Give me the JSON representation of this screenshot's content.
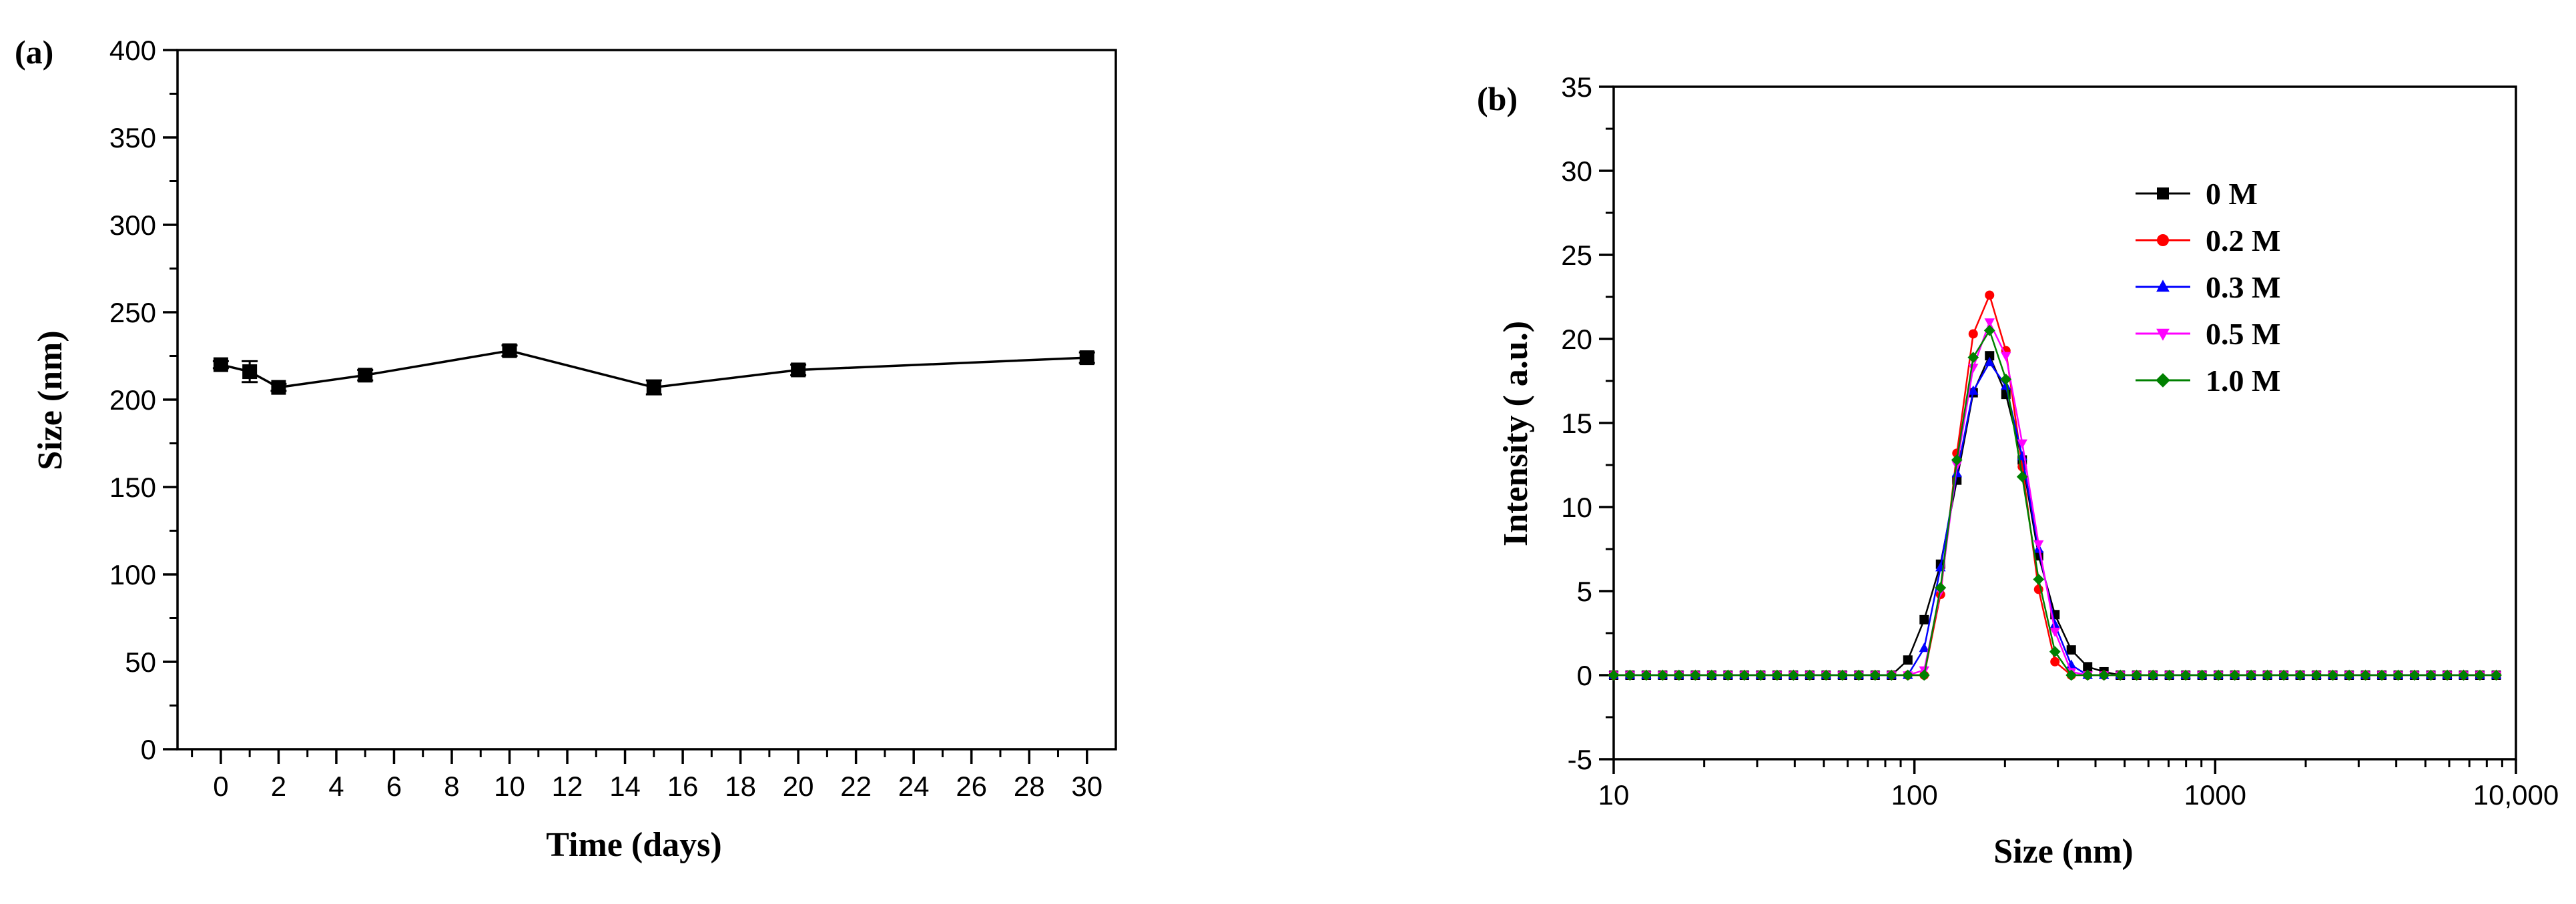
{
  "chart_data": [
    {
      "panel_label": "(a)",
      "type": "line",
      "xlabel": "Time (days)",
      "ylabel": "Size (nm)",
      "xlim": [
        -1.5,
        31
      ],
      "ylim": [
        0,
        400
      ],
      "x_ticks": [
        0,
        2,
        4,
        6,
        8,
        10,
        12,
        14,
        16,
        18,
        20,
        22,
        24,
        26,
        28,
        30
      ],
      "x_tick_labels": [
        "0",
        "2",
        "4",
        "6",
        "8",
        "10",
        "12",
        "14",
        "16",
        "18",
        "20",
        "22",
        "24",
        "26",
        "28",
        "30"
      ],
      "y_ticks": [
        0,
        50,
        100,
        150,
        200,
        250,
        300,
        350,
        400
      ],
      "y_tick_labels": [
        "0",
        "50",
        "100",
        "150",
        "200",
        "250",
        "300",
        "350",
        "400"
      ],
      "grid": false,
      "series": [
        {
          "color": "#000000",
          "marker": "square",
          "x": [
            0,
            1,
            2,
            5,
            10,
            15,
            20,
            30
          ],
          "y": [
            220,
            216,
            207,
            214,
            228,
            207,
            217,
            224
          ],
          "error": [
            2,
            6,
            2,
            3,
            3,
            4,
            3,
            3
          ]
        }
      ]
    },
    {
      "panel_label": "(b)",
      "type": "line",
      "xlabel": "Size  (nm)",
      "ylabel": "Intensity ( a.u.)",
      "x_scale": "log",
      "xlim": [
        10,
        10000
      ],
      "ylim": [
        -5,
        35
      ],
      "x_ticks": [
        10,
        100,
        1000,
        10000
      ],
      "x_tick_labels": [
        "10",
        "100",
        "1000",
        "10,000"
      ],
      "y_ticks": [
        -5,
        0,
        5,
        10,
        15,
        20,
        25,
        30,
        35
      ],
      "y_tick_labels": [
        "-5",
        "0",
        "5",
        "10",
        "15",
        "20",
        "25",
        "30",
        "35"
      ],
      "grid": false,
      "legend_position": "top-right",
      "x": [
        10,
        11.33,
        12.84,
        14.55,
        16.49,
        18.69,
        21.18,
        24,
        27.2,
        30.83,
        34.94,
        39.6,
        44.88,
        50.86,
        57.64,
        65.32,
        74.03,
        83.9,
        95.08,
        107.76,
        122.12,
        138.4,
        156.85,
        177.76,
        201.46,
        228.31,
        258.75,
        293.24,
        332.33,
        376.63,
        426.84,
        483.74,
        548.23,
        621.31,
        704.14,
        798.01,
        904.39,
        1024.95,
        1161.58,
        1316.43,
        1491.92,
        1690.8,
        1916.2,
        2171.64,
        2461.14,
        2789.23,
        3161.05,
        3582.44,
        4060.0,
        4601.23,
        5214.61,
        5909.76,
        6697.59,
        7590.43,
        8602.29
      ],
      "series": [
        {
          "name": "0 M",
          "color": "#000000",
          "marker": "square",
          "y": [
            0,
            0,
            0,
            0,
            0,
            0,
            0,
            0,
            0,
            0,
            0,
            0,
            0,
            0,
            0,
            0,
            0,
            0,
            0.9,
            3.3,
            6.6,
            11.6,
            16.8,
            19.0,
            16.7,
            12.8,
            7.1,
            3.6,
            1.5,
            0.5,
            0.2,
            0,
            0,
            0,
            0,
            0,
            0,
            0,
            0,
            0,
            0,
            0,
            0,
            0,
            0,
            0,
            0,
            0,
            0,
            0,
            0,
            0,
            0,
            0,
            0
          ]
        },
        {
          "name": "0.2 M",
          "color": "#ff0000",
          "marker": "circle",
          "y": [
            0,
            0,
            0,
            0,
            0,
            0,
            0,
            0,
            0,
            0,
            0,
            0,
            0,
            0,
            0,
            0,
            0,
            0,
            0,
            0,
            4.8,
            13.2,
            20.3,
            22.6,
            19.3,
            12.4,
            5.1,
            0.8,
            0,
            0,
            0,
            0,
            0,
            0,
            0,
            0,
            0,
            0,
            0,
            0,
            0,
            0,
            0,
            0,
            0,
            0,
            0,
            0,
            0,
            0,
            0,
            0,
            0,
            0,
            0
          ]
        },
        {
          "name": "0.3 M",
          "color": "#0000ff",
          "marker": "triangle-up",
          "y": [
            0,
            0,
            0,
            0,
            0,
            0,
            0,
            0,
            0,
            0,
            0,
            0,
            0,
            0,
            0,
            0,
            0,
            0,
            0,
            1.6,
            6.4,
            12.0,
            16.9,
            18.6,
            17.2,
            13.0,
            7.5,
            3.0,
            0.6,
            0,
            0,
            0,
            0,
            0,
            0,
            0,
            0,
            0,
            0,
            0,
            0,
            0,
            0,
            0,
            0,
            0,
            0,
            0,
            0,
            0,
            0,
            0,
            0,
            0,
            0
          ]
        },
        {
          "name": "0.5 M",
          "color": "#ff00ff",
          "marker": "triangle-down",
          "y": [
            0,
            0,
            0,
            0,
            0,
            0,
            0,
            0,
            0,
            0,
            0,
            0,
            0,
            0,
            0,
            0,
            0,
            0,
            0,
            0.3,
            5.0,
            12.5,
            18.3,
            21.0,
            19.0,
            13.8,
            7.8,
            2.6,
            0.2,
            0,
            0,
            0,
            0,
            0,
            0,
            0,
            0,
            0,
            0,
            0,
            0,
            0,
            0,
            0,
            0,
            0,
            0,
            0,
            0,
            0,
            0,
            0,
            0,
            0,
            0
          ]
        },
        {
          "name": "1.0 M",
          "color": "#008000",
          "marker": "diamond",
          "y": [
            0,
            0,
            0,
            0,
            0,
            0,
            0,
            0,
            0,
            0,
            0,
            0,
            0,
            0,
            0,
            0,
            0,
            0,
            0,
            0,
            5.2,
            12.8,
            18.9,
            20.5,
            17.6,
            11.8,
            5.7,
            1.4,
            0,
            0,
            0,
            0,
            0,
            0,
            0,
            0,
            0,
            0,
            0,
            0,
            0,
            0,
            0,
            0,
            0,
            0,
            0,
            0,
            0,
            0,
            0,
            0,
            0,
            0,
            0
          ]
        }
      ]
    }
  ]
}
